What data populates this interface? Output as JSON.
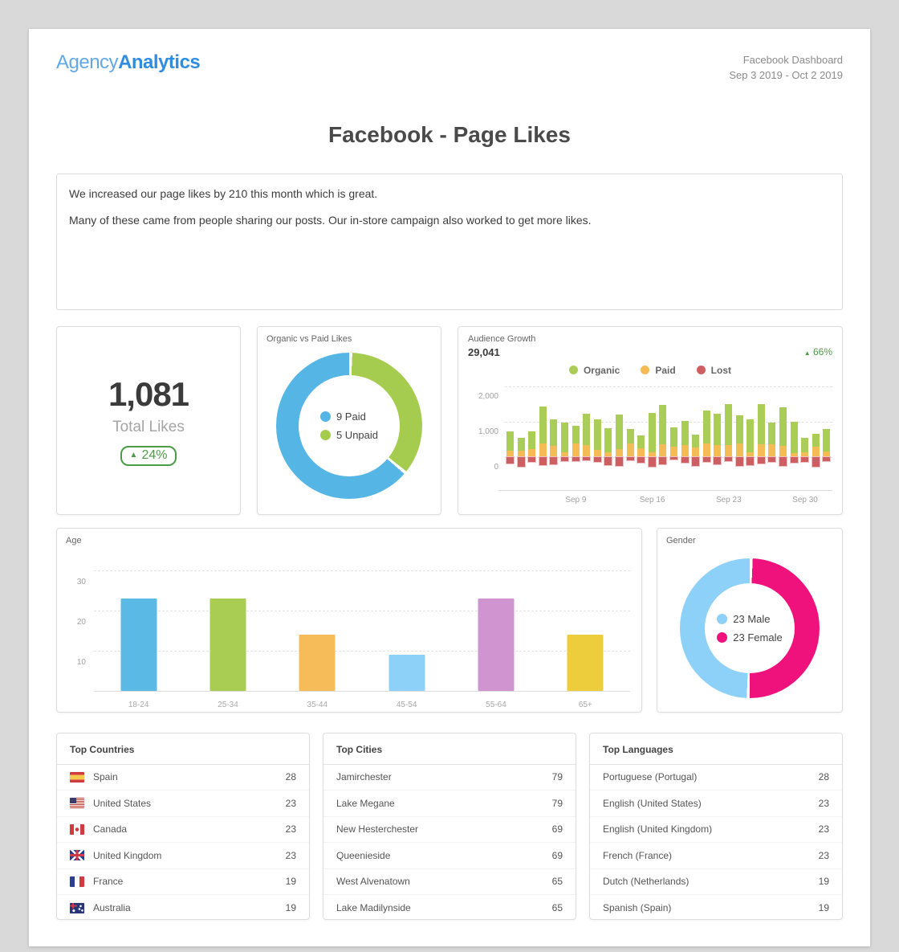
{
  "colors": {
    "brand_light": "#63a8e6",
    "brand_bold": "#2f8ce0",
    "positive": "#4a9d45",
    "page_bg": "#d9d9d9"
  },
  "header": {
    "logo_light": "Agency",
    "logo_bold": "Analytics",
    "report_title": "Facebook Dashboard",
    "date_range": "Sep 3 2019 - Oct 2 2019"
  },
  "page_title": "Facebook - Page Likes",
  "comment": {
    "line1": "We increased our page likes by 210 this month which is great.",
    "line2": "Many of these came from people sharing our posts. Our in-store campaign also worked to get more likes."
  },
  "total_likes": {
    "value": "1,081",
    "label": "Total Likes",
    "change": "24%",
    "trend": "up"
  },
  "chart_data": [
    {
      "id": "organic_vs_paid",
      "type": "pie",
      "title": "Organic vs Paid Likes",
      "slices": [
        {
          "label": "9 Paid",
          "value": 9,
          "color": "#55b5e5"
        },
        {
          "label": "5 Unpaid",
          "value": 5,
          "color": "#a6cc4f"
        }
      ],
      "legend_position": "center"
    },
    {
      "id": "audience_growth",
      "type": "bar",
      "stacked": true,
      "title": "Audience Growth",
      "total": "29,041",
      "change": "66%",
      "trend": "up",
      "x": [
        "Sep 3",
        "Sep 4",
        "Sep 5",
        "Sep 6",
        "Sep 7",
        "Sep 8",
        "Sep 9",
        "Sep 10",
        "Sep 11",
        "Sep 12",
        "Sep 13",
        "Sep 14",
        "Sep 15",
        "Sep 16",
        "Sep 17",
        "Sep 18",
        "Sep 19",
        "Sep 20",
        "Sep 21",
        "Sep 22",
        "Sep 23",
        "Sep 24",
        "Sep 25",
        "Sep 26",
        "Sep 27",
        "Sep 28",
        "Sep 29",
        "Sep 30",
        "Oct 1",
        "Oct 2"
      ],
      "series": [
        {
          "name": "Organic",
          "color": "#a9cd57",
          "values": [
            545,
            360,
            500,
            1055,
            740,
            850,
            500,
            890,
            865,
            700,
            990,
            430,
            350,
            1120,
            1110,
            560,
            680,
            380,
            950,
            900,
            1150,
            790,
            950,
            1140,
            600,
            1100,
            900,
            410,
            370,
            650
          ]
        },
        {
          "name": "Paid",
          "color": "#f5bb54",
          "values": [
            175,
            170,
            230,
            375,
            320,
            120,
            390,
            340,
            195,
            120,
            210,
            370,
            250,
            130,
            350,
            280,
            330,
            260,
            370,
            330,
            340,
            390,
            120,
            360,
            360,
            310,
            100,
            120,
            280,
            150
          ]
        },
        {
          "name": "Lost",
          "color": "#cd5f63",
          "values": [
            -180,
            -280,
            -150,
            -240,
            -200,
            -120,
            -130,
            -90,
            -140,
            -230,
            -260,
            -100,
            -170,
            -270,
            -200,
            -70,
            -170,
            -250,
            -140,
            -200,
            -120,
            -260,
            -230,
            -180,
            -140,
            -260,
            -160,
            -140,
            -270,
            -130
          ]
        }
      ],
      "ylim": [
        -500,
        2000
      ],
      "yticks": [
        {
          "value": 2000,
          "label": "2,000"
        },
        {
          "value": 1000,
          "label": "1,000"
        },
        {
          "value": 0,
          "label": "0"
        }
      ],
      "xticks": [
        {
          "index": 6,
          "label": "Sep 9"
        },
        {
          "index": 13,
          "label": "Sep 16"
        },
        {
          "index": 20,
          "label": "Sep 23"
        },
        {
          "index": 27,
          "label": "Sep 30"
        }
      ],
      "grid": "dashed",
      "legend_position": "top"
    },
    {
      "id": "age",
      "type": "bar",
      "title": "Age",
      "categories": [
        "18-24",
        "25-34",
        "35-44",
        "45-54",
        "55-64",
        "65+"
      ],
      "values": [
        23,
        23,
        14,
        9,
        23,
        14
      ],
      "colors": [
        "#5bb9e6",
        "#a9cd53",
        "#f6bc5a",
        "#8ed1f8",
        "#d095d0",
        "#edcd3b"
      ],
      "ylim": [
        0,
        35
      ],
      "yticks": [
        {
          "value": 30,
          "label": "30"
        },
        {
          "value": 20,
          "label": "20"
        },
        {
          "value": 10,
          "label": "10"
        }
      ],
      "grid": "dashed"
    },
    {
      "id": "gender",
      "type": "pie",
      "title": "Gender",
      "slices": [
        {
          "label": "23 Male",
          "value": 23,
          "color": "#8ed1f8"
        },
        {
          "label": "23 Female",
          "value": 23,
          "color": "#f0127c"
        }
      ],
      "legend_position": "center"
    }
  ],
  "tables": {
    "countries": {
      "title": "Top Countries",
      "rows": [
        {
          "flag": "es",
          "label": "Spain",
          "value": 28
        },
        {
          "flag": "us",
          "label": "United States",
          "value": 23
        },
        {
          "flag": "ca",
          "label": "Canada",
          "value": 23
        },
        {
          "flag": "gb",
          "label": "United Kingdom",
          "value": 23
        },
        {
          "flag": "fr",
          "label": "France",
          "value": 19
        },
        {
          "flag": "au",
          "label": "Australia",
          "value": 19
        }
      ]
    },
    "cities": {
      "title": "Top Cities",
      "rows": [
        {
          "label": "Jamirchester",
          "value": 79
        },
        {
          "label": "Lake Megane",
          "value": 79
        },
        {
          "label": "New Hesterchester",
          "value": 69
        },
        {
          "label": "Queenieside",
          "value": 69
        },
        {
          "label": "West Alvenatown",
          "value": 65
        },
        {
          "label": "Lake Madilynside",
          "value": 65
        }
      ]
    },
    "languages": {
      "title": "Top Languages",
      "rows": [
        {
          "label": "Portuguese (Portugal)",
          "value": 28
        },
        {
          "label": "English (United States)",
          "value": 23
        },
        {
          "label": "English (United Kingdom)",
          "value": 23
        },
        {
          "label": "French (France)",
          "value": 23
        },
        {
          "label": "Dutch (Netherlands)",
          "value": 19
        },
        {
          "label": "Spanish (Spain)",
          "value": 19
        }
      ]
    }
  }
}
